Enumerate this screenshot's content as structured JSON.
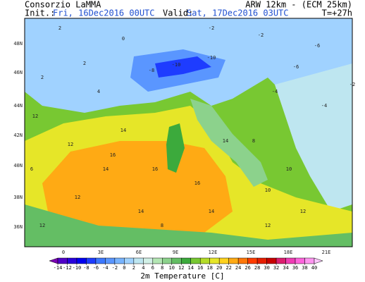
{
  "header": {
    "agency": "Consorzio LaMMA",
    "model": "ARW 12km - (ECM 25km)",
    "init_label": "Init.:",
    "init_time": "Fri, 16Dec2016 00UTC",
    "valid_label": "Valid:",
    "valid_time": "Sat, 17Dec2016 03UTC",
    "lead_time": "T=+27h"
  },
  "lat_labels": [
    "48N",
    "46N",
    "44N",
    "42N",
    "40N",
    "38N",
    "36N"
  ],
  "lon_labels": [
    "0",
    "3E",
    "6E",
    "9E",
    "12E",
    "15E",
    "18E",
    "21E"
  ],
  "map_labels": [
    "2",
    "0",
    "-2",
    "-2",
    "-10",
    "-10",
    "-8",
    "-6",
    "-6",
    "-4",
    "4",
    "2",
    "12",
    "14",
    "14",
    "12",
    "12",
    "14",
    "16",
    "16",
    "16",
    "14",
    "12",
    "12",
    "10",
    "8",
    "10",
    "14",
    "12",
    "2",
    "-4",
    "-2",
    "8",
    "6"
  ],
  "colorbar": {
    "title": "2m Temperature [C]",
    "ticks": [
      -14,
      -12,
      -10,
      -8,
      -6,
      -4,
      -2,
      0,
      2,
      4,
      6,
      8,
      10,
      12,
      14,
      16,
      18,
      20,
      22,
      24,
      26,
      28,
      30,
      32,
      34,
      36,
      38,
      40
    ],
    "colors": [
      "#7b00b4",
      "#5000c8",
      "#2800dc",
      "#0000f0",
      "#1e3cff",
      "#3c78ff",
      "#5a96ff",
      "#78b4ff",
      "#a0d2ff",
      "#bee6f0",
      "#d2f0e6",
      "#b4e6b4",
      "#8cd28c",
      "#64be64",
      "#3caa3c",
      "#78c832",
      "#b4dc28",
      "#e6e628",
      "#ffd21e",
      "#ffaa14",
      "#ff780a",
      "#ff3c00",
      "#e61e00",
      "#c80000",
      "#dc1e6e",
      "#f03cb4",
      "#ff64dc",
      "#ff96f0",
      "#ffc8ff"
    ]
  }
}
